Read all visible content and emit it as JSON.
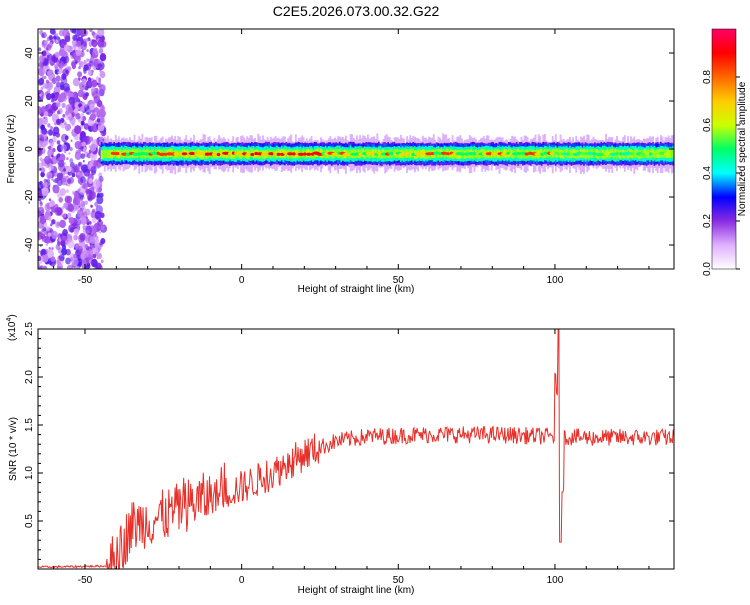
{
  "title": "C2E5.2026.073.00.32.G22",
  "chart_data": [
    {
      "type": "heatmap",
      "xlabel": "Height of straight line (km)",
      "ylabel": "Frequency (Hz)",
      "xlim": [
        -65,
        138
      ],
      "ylim": [
        -50,
        50
      ],
      "xticks": [
        -50,
        0,
        50,
        100
      ],
      "yticks": [
        -40,
        -20,
        0,
        20,
        40
      ],
      "colorbar": {
        "label": "Normalized spectral amplitude",
        "range": [
          0,
          1
        ],
        "ticks": [
          "0.0",
          "0.2",
          "0.4",
          "0.6",
          "0.8"
        ],
        "tick_values": [
          0,
          0.2,
          0.4,
          0.6,
          0.8
        ],
        "colors": [
          "#ffffff",
          "#e0b0ff",
          "#8a2be2",
          "#0000ff",
          "#00ffff",
          "#00ff66",
          "#ccff00",
          "#ffcc00",
          "#ff6600",
          "#ff0000",
          "#ff0066"
        ]
      },
      "signal": {
        "center_frequency_hz": -2,
        "band_halfwidth_hz": 3,
        "noisy_region_x": [
          -65,
          -44
        ]
      }
    },
    {
      "type": "line",
      "xlabel": "Height of straight line (km)",
      "ylabel": "SNR (10 * v/v)",
      "yscale_label": "(x10",
      "yscale_exponent": "4",
      "xlim": [
        -65,
        138
      ],
      "ylim": [
        0,
        2.5
      ],
      "xticks": [
        -50,
        0,
        50,
        100
      ],
      "yticks": [
        "0.5",
        "1.0",
        "1.5",
        "2.0",
        "2.5"
      ],
      "ytick_values": [
        0.5,
        1.0,
        1.5,
        2.0,
        2.5
      ],
      "color": "#e8302a",
      "trend": [
        {
          "x": -65,
          "y": 0.02
        },
        {
          "x": -43,
          "y": 0.03
        },
        {
          "x": -40,
          "y": 0.12
        },
        {
          "x": -35,
          "y": 0.45
        },
        {
          "x": -25,
          "y": 0.55
        },
        {
          "x": -15,
          "y": 0.7
        },
        {
          "x": 0,
          "y": 0.85
        },
        {
          "x": 10,
          "y": 1.0
        },
        {
          "x": 20,
          "y": 1.2
        },
        {
          "x": 30,
          "y": 1.33
        },
        {
          "x": 40,
          "y": 1.38
        },
        {
          "x": 60,
          "y": 1.4
        },
        {
          "x": 80,
          "y": 1.4
        },
        {
          "x": 100,
          "y": 1.38
        },
        {
          "x": 110,
          "y": 1.37
        },
        {
          "x": 138,
          "y": 1.37
        }
      ],
      "spike": {
        "x": 101.5,
        "peak": 2.5,
        "trough": 0.28
      }
    }
  ]
}
